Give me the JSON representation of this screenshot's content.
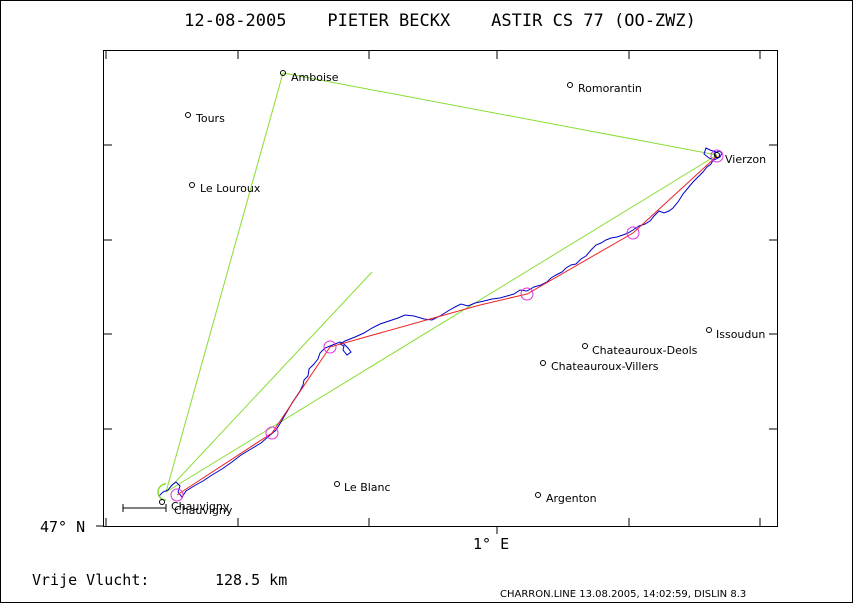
{
  "title": "12-08-2005    PIETER BECKX    ASTIR CS 77 (OO-ZWZ)",
  "axis": {
    "y_label": "47° N",
    "x_label": "1° E"
  },
  "places": [
    {
      "name": "Amboise",
      "marker": "circle"
    },
    {
      "name": "Romorantin",
      "marker": "circle"
    },
    {
      "name": "Tours",
      "marker": "circle"
    },
    {
      "name": "Vierzon",
      "marker": "circle"
    },
    {
      "name": "Le Louroux",
      "marker": "circle"
    },
    {
      "name": "Issoudun",
      "marker": "circle"
    },
    {
      "name": "Chateauroux-Deols",
      "marker": "circle"
    },
    {
      "name": "Chateauroux-Villers",
      "marker": "circle"
    },
    {
      "name": "Le Blanc",
      "marker": "circle"
    },
    {
      "name": "Argenton",
      "marker": "circle"
    },
    {
      "name": "Chauvigny",
      "marker": "circle"
    },
    {
      "name": "Chauvigny",
      "marker": "circle"
    }
  ],
  "footer": {
    "distance_label": "Vrije Vlucht:",
    "distance_value": "128.5 km",
    "credits": "CHARRON.LINE 13.08.2005, 14:02:59, DISLIN 8.3"
  },
  "colors": {
    "track": "#0000cc",
    "task_lines": "#88dd33",
    "free_flight": "#ee2222",
    "turnpoint_circles": "#dd33dd",
    "text": "#000000"
  }
}
